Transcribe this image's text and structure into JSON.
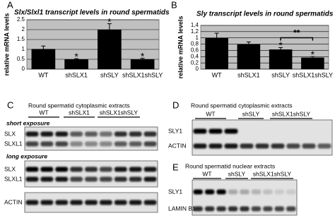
{
  "chart_data": [
    {
      "type": "bar",
      "panel_label": "A",
      "title": "Slx/Slxl1 transcript levels in round spermatids",
      "y_label": "relative mRNA levels",
      "categories": [
        "WT",
        "shSLX1",
        "shSLY",
        "shSLX1shSLY"
      ],
      "values": [
        1.02,
        0.5,
        2.0,
        0.5
      ],
      "errors": [
        0.15,
        0.03,
        0.3,
        0.05
      ],
      "annotations": [
        null,
        "*",
        "*",
        "*"
      ],
      "color": "#000000",
      "background": "#c0c0c0",
      "ylim": [
        0,
        2.5
      ],
      "yticks": [
        0,
        0.5,
        1,
        1.5,
        2,
        2.5
      ],
      "grid": true
    },
    {
      "type": "bar",
      "panel_label": "B",
      "title": "Sly transcript levels in round spermatids",
      "y_label": "relative mRNA levels",
      "categories": [
        "WT",
        "shSLX1",
        "shSLY",
        "shSLX1shSLY"
      ],
      "values": [
        1.0,
        0.8,
        0.63,
        0.37
      ],
      "errors": [
        0.15,
        0.07,
        0.06,
        0.03
      ],
      "annotations": [
        null,
        null,
        "*",
        "*"
      ],
      "bracket": {
        "from": 2,
        "to": 3,
        "label": "**"
      },
      "color": "#000000",
      "background": "#c0c0c0",
      "ylim": [
        0,
        1.4
      ],
      "yticks": [
        0,
        {
          "value": 0.2,
          "label": "0,2"
        },
        {
          "value": 0.4,
          "label": "0,4"
        },
        {
          "value": 0.6,
          "label": "0,6"
        },
        {
          "value": 0.8,
          "label": "0,8"
        },
        1,
        {
          "value": 1.2,
          "label": "1,2"
        },
        {
          "value": 1.4,
          "label": "1,4"
        }
      ],
      "grid": true
    }
  ],
  "blots": [
    {
      "panel_label": "C",
      "title": "Round spermatid cytoplasmic extracts",
      "groups": [
        "WT",
        "shSLX1",
        "shSLX1shSLY"
      ],
      "blocks": [
        {
          "note": "short exposure",
          "rows": [
            "SLX",
            "SLXL1"
          ]
        },
        {
          "note": "long exposure",
          "rows": [
            "SLX",
            "SLXL1"
          ]
        },
        {
          "rows": [
            "ACTIN"
          ]
        }
      ]
    },
    {
      "panel_label": "D",
      "title": "Round spermatid cytoplasmic extracts",
      "groups": [
        "WT",
        "shSLY",
        "shSLX1shSLY"
      ],
      "blocks": [
        {
          "rows": [
            "SLY1",
            "ACTIN"
          ]
        }
      ]
    },
    {
      "panel_label": "E",
      "title": "Round spermatid nuclear extracts",
      "groups": [
        "WT",
        "shSLY",
        "shSLX1shSLY"
      ],
      "blocks": [
        {
          "rows": [
            "SLY1",
            "LAMIN B1"
          ]
        }
      ]
    }
  ]
}
